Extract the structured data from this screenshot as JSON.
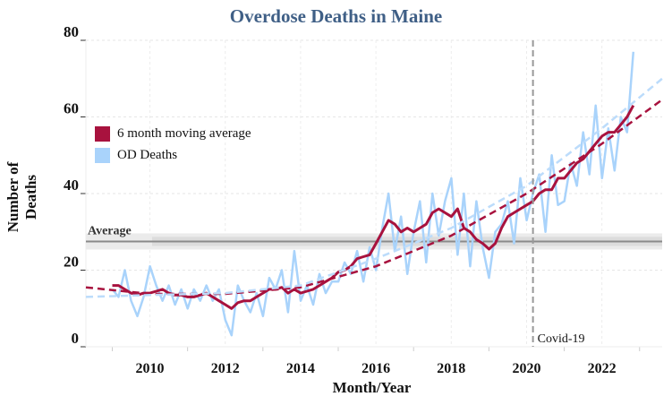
{
  "chart_data": {
    "type": "line",
    "title": "Overdose Deaths in Maine",
    "xlabel": "Month/Year",
    "ylabel": "Number of Deaths",
    "xlim": [
      2008.3,
      2023.6
    ],
    "ylim": [
      0,
      80
    ],
    "x_ticks": [
      2010,
      2012,
      2014,
      2016,
      2018,
      2020,
      2022
    ],
    "y_ticks": [
      0,
      20,
      40,
      60,
      80
    ],
    "grid": true,
    "legend_placement": "left",
    "legend": [
      "6 month moving average",
      "OD Deaths"
    ],
    "colors": {
      "moving_average": "#a8123e",
      "od_deaths": "#a9d3fb",
      "average_band": "#9a9a9a",
      "covid_line": "#999999",
      "title": "#3f5f86"
    },
    "series": [
      {
        "name": "OD Deaths",
        "x_start": 2009.0,
        "x_step_years": 0.1667,
        "values": [
          15,
          13,
          20,
          12,
          8,
          13,
          21,
          16,
          12,
          16,
          11,
          15,
          10,
          15,
          12,
          16,
          12,
          15,
          7,
          3,
          16,
          12,
          9,
          14,
          8,
          18,
          15,
          20,
          9,
          25,
          12,
          16,
          11,
          19,
          14,
          17,
          17,
          22,
          19,
          25,
          17,
          26,
          20,
          31,
          40,
          25,
          34,
          19,
          30,
          38,
          22,
          40,
          29,
          38,
          44,
          24,
          40,
          21,
          38,
          26,
          18,
          30,
          32,
          38,
          27,
          44,
          33,
          40,
          45,
          30,
          50,
          37,
          38,
          48,
          42,
          56,
          45,
          63,
          44,
          57,
          46,
          60,
          56,
          77
        ]
      },
      {
        "name": "6 month moving average",
        "x_start": 2009.0,
        "x_step_years": 0.1667,
        "values": [
          16,
          16,
          15,
          14,
          13.5,
          14,
          14,
          14.5,
          15,
          14,
          13.5,
          13.5,
          13,
          13,
          13.5,
          14,
          13,
          12,
          11,
          10,
          11.5,
          12,
          12,
          13,
          14,
          15,
          15,
          15.5,
          14,
          15,
          14,
          14.5,
          15,
          16,
          17,
          18,
          19.5,
          20,
          21,
          23,
          23.5,
          24,
          27,
          30,
          33,
          32,
          30,
          31,
          30,
          31,
          32,
          35,
          36,
          35,
          34,
          36,
          31,
          30,
          28,
          27,
          25.5,
          27,
          31,
          34,
          35,
          36,
          37,
          38,
          40,
          41,
          41,
          44,
          44,
          46,
          48,
          49,
          51,
          53,
          55,
          56,
          56,
          58,
          60,
          63
        ]
      }
    ],
    "trend_lines": [
      {
        "of": "6 month moving average",
        "points": [
          [
            2008.3,
            15.5
          ],
          [
            2010,
            13.8
          ],
          [
            2012,
            13.8
          ],
          [
            2014,
            15.5
          ],
          [
            2016,
            21
          ],
          [
            2018,
            29
          ],
          [
            2020,
            40
          ],
          [
            2022,
            53
          ],
          [
            2023.6,
            64.5
          ]
        ]
      },
      {
        "of": "OD Deaths",
        "points": [
          [
            2008.3,
            13
          ],
          [
            2010,
            13.5
          ],
          [
            2012,
            14
          ],
          [
            2014,
            16
          ],
          [
            2016,
            23
          ],
          [
            2018,
            31
          ],
          [
            2020,
            42
          ],
          [
            2022,
            57
          ],
          [
            2023.6,
            70
          ]
        ]
      }
    ],
    "reference_lines": [
      {
        "label": "Average",
        "axis": "y",
        "value": 27.5
      },
      {
        "label": "Covid-19",
        "axis": "x",
        "value": 2020.17
      }
    ]
  }
}
